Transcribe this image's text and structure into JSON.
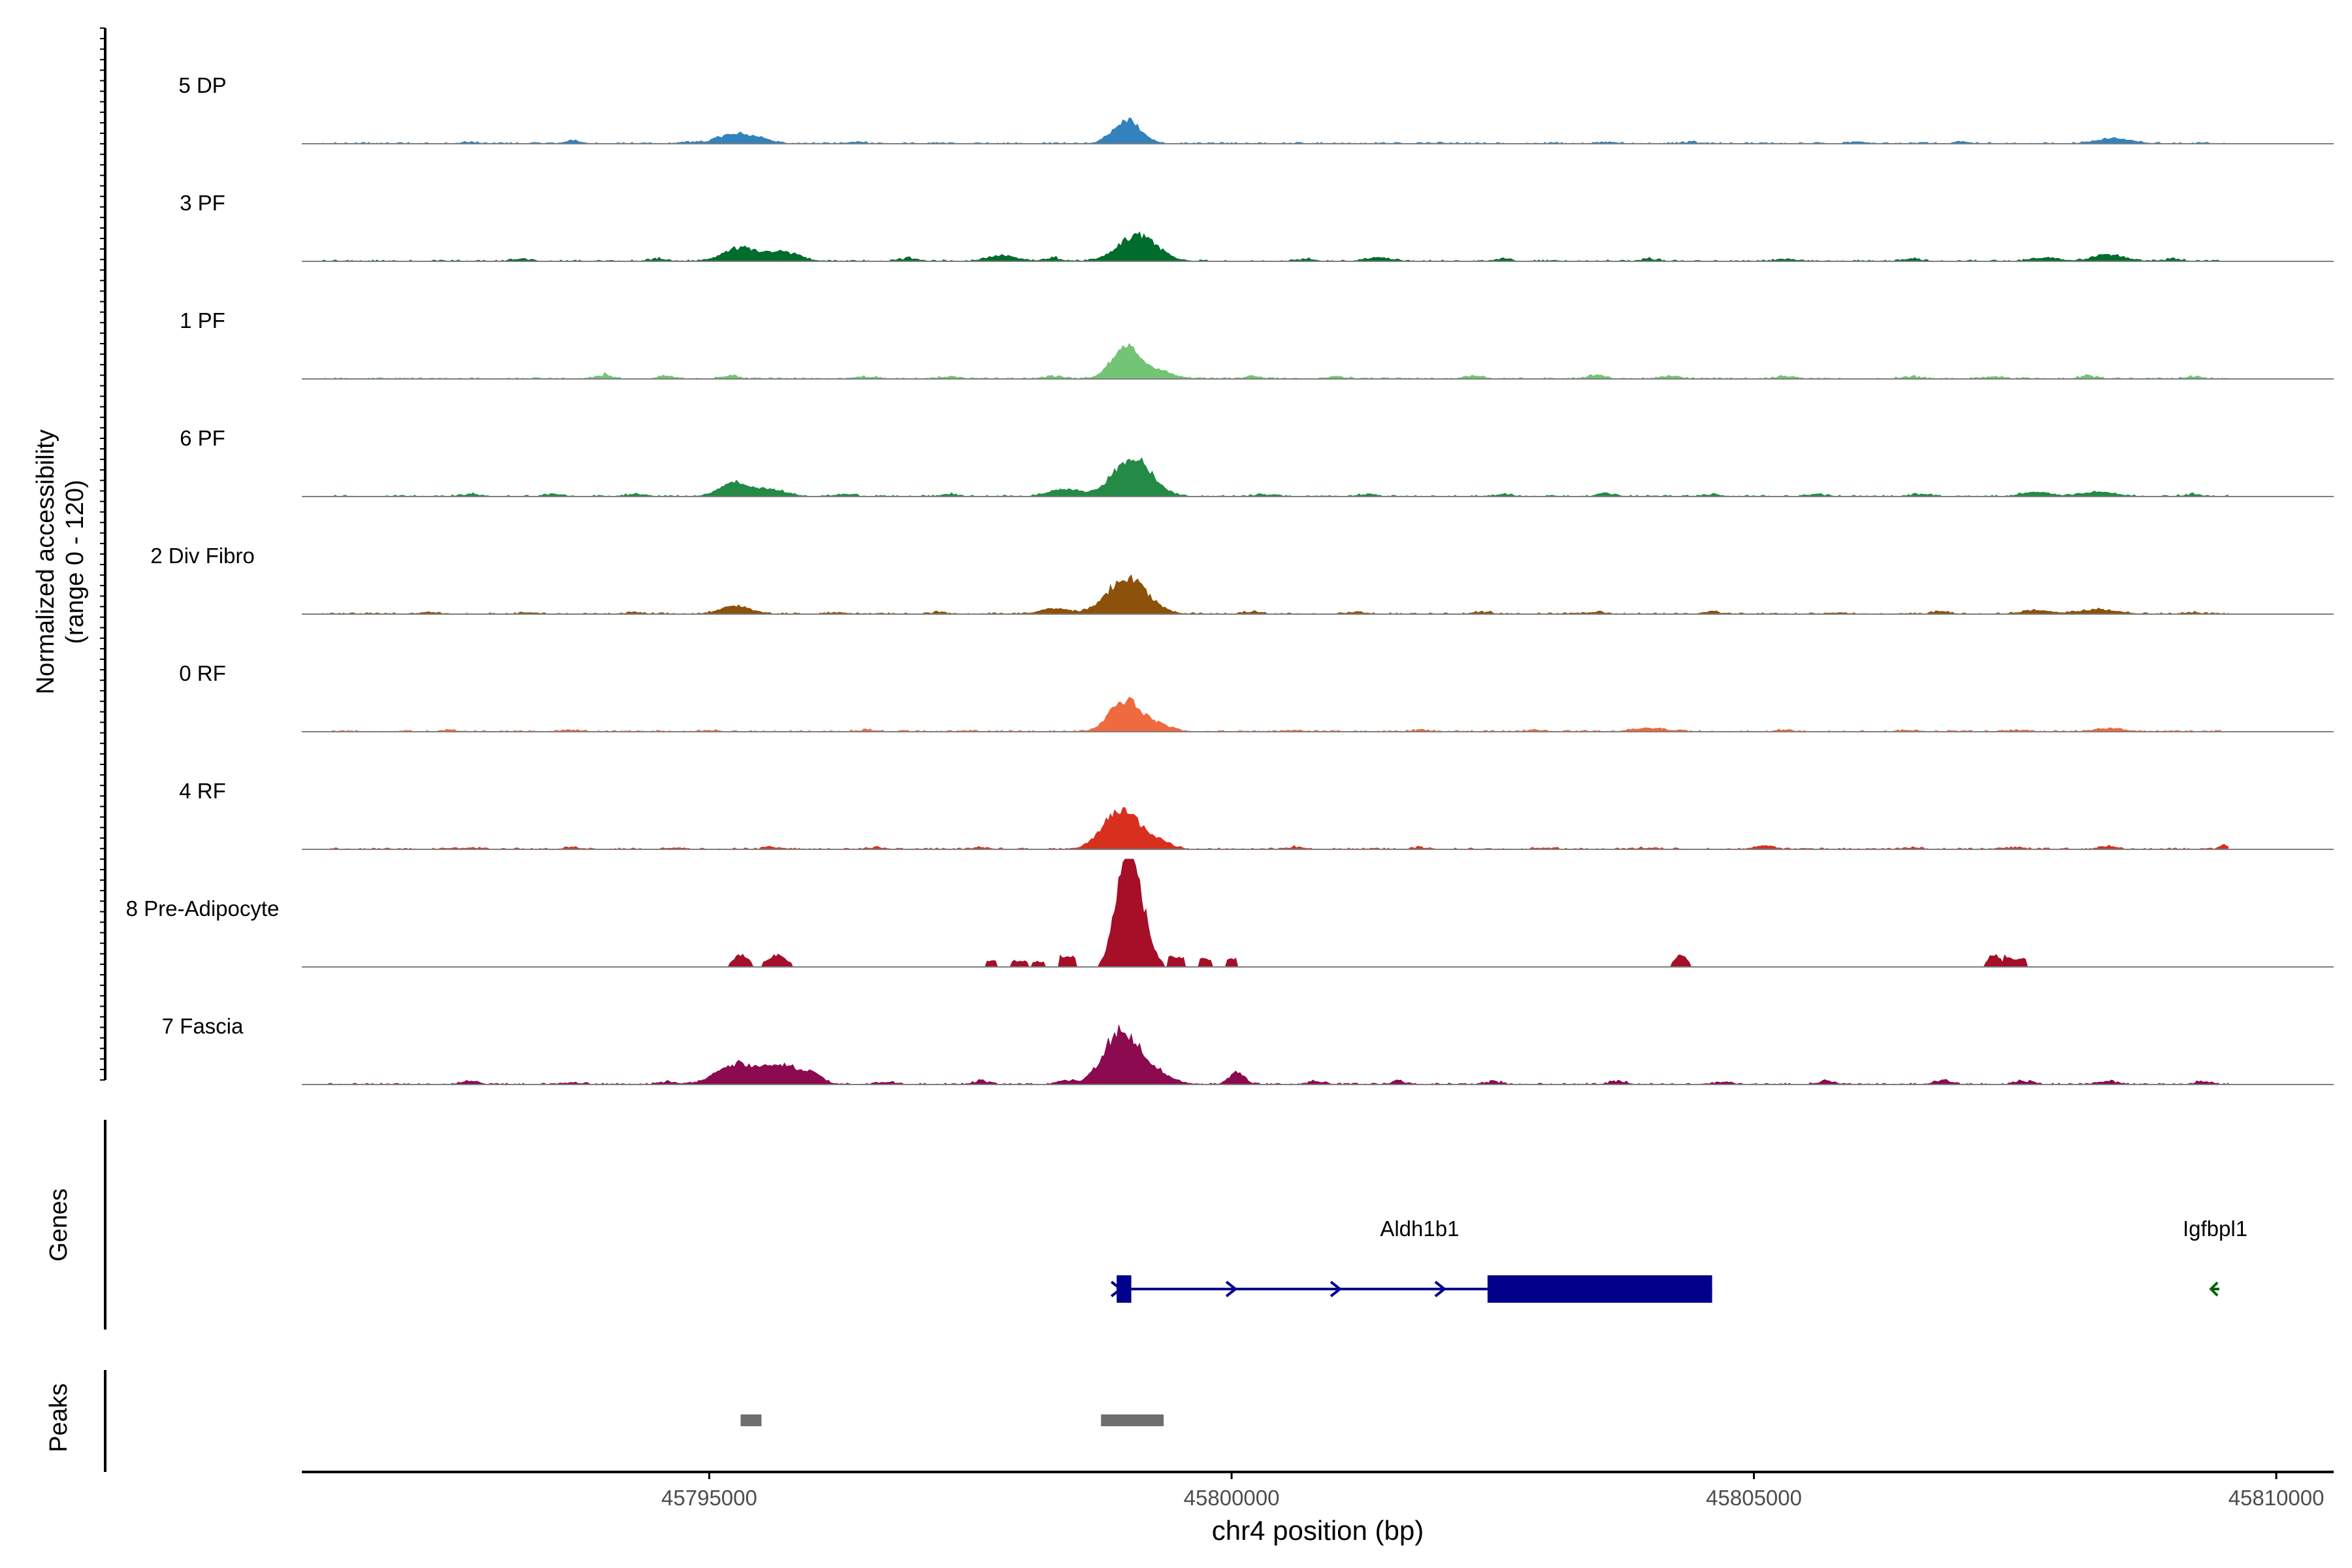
{
  "chart_data": {
    "type": "area",
    "subtype": "genome-coverage-track",
    "yaxis": {
      "label_line1": "Normalized accessibility",
      "label_line2": "(range 0 - 120)",
      "range": [
        0,
        120
      ]
    },
    "xaxis": {
      "label": "chr4 position (bp)",
      "range": [
        45791100,
        45810550
      ],
      "ticks": [
        45795000,
        45800000,
        45805000,
        45810000
      ],
      "tick_labels": [
        "45795000",
        "45800000",
        "45805000",
        "45810000"
      ]
    },
    "grid": false,
    "legend": "none",
    "tracks": [
      {
        "name": "5 DP",
        "color": "#3182bd",
        "sparse": false,
        "peaks": [
          [
            45795250,
            11,
            160
          ],
          [
            45799000,
            26,
            130
          ],
          [
            45808450,
            6,
            160
          ],
          [
            45795500,
            4,
            100
          ]
        ],
        "bumps": [
          [
            45792700,
            2
          ],
          [
            45793700,
            3
          ],
          [
            45794800,
            2
          ],
          [
            45796400,
            2
          ],
          [
            45797200,
            1
          ],
          [
            45802000,
            1
          ],
          [
            45803600,
            2
          ],
          [
            45804400,
            2
          ],
          [
            45806000,
            2
          ],
          [
            45807000,
            2
          ],
          [
            45809300,
            1
          ]
        ]
      },
      {
        "name": "3 PF",
        "color": "#006d2c",
        "sparse": false,
        "peaks": [
          [
            45795300,
            15,
            160
          ],
          [
            45795700,
            10,
            150
          ],
          [
            45799100,
            30,
            180
          ],
          [
            45797800,
            6,
            140
          ],
          [
            45801400,
            4,
            120
          ],
          [
            45808400,
            7,
            150
          ],
          [
            45807800,
            4,
            120
          ]
        ],
        "bumps": [
          [
            45793200,
            3
          ],
          [
            45794500,
            3
          ],
          [
            45796900,
            4
          ],
          [
            45798300,
            4
          ],
          [
            45800700,
            3
          ],
          [
            45802600,
            3
          ],
          [
            45804000,
            3
          ],
          [
            45805300,
            3
          ],
          [
            45806500,
            3
          ],
          [
            45809000,
            3
          ]
        ]
      },
      {
        "name": "1 PF",
        "color": "#74c476",
        "sparse": false,
        "peaks": [
          [
            45798980,
            34,
            130
          ],
          [
            45799250,
            9,
            160
          ]
        ],
        "bumps": [
          [
            45794000,
            5
          ],
          [
            45794600,
            4
          ],
          [
            45795200,
            4
          ],
          [
            45796500,
            3
          ],
          [
            45797300,
            3
          ],
          [
            45798300,
            4
          ],
          [
            45800200,
            3
          ],
          [
            45801000,
            3
          ],
          [
            45802300,
            4
          ],
          [
            45803500,
            5
          ],
          [
            45804200,
            4
          ],
          [
            45805300,
            3
          ],
          [
            45806500,
            3
          ],
          [
            45807300,
            3
          ],
          [
            45808200,
            4
          ],
          [
            45809200,
            3
          ]
        ]
      },
      {
        "name": "6 PF",
        "color": "#238b45",
        "sparse": false,
        "peaks": [
          [
            45795250,
            16,
            140
          ],
          [
            45795600,
            7,
            140
          ],
          [
            45799050,
            44,
            180
          ],
          [
            45798400,
            8,
            140
          ],
          [
            45808300,
            5,
            160
          ],
          [
            45807700,
            5,
            130
          ]
        ],
        "bumps": [
          [
            45792700,
            3
          ],
          [
            45793500,
            3
          ],
          [
            45794300,
            3
          ],
          [
            45796300,
            3
          ],
          [
            45797300,
            3
          ],
          [
            45800300,
            3
          ],
          [
            45801300,
            3
          ],
          [
            45802600,
            3
          ],
          [
            45803600,
            3
          ],
          [
            45804600,
            3
          ],
          [
            45805600,
            3
          ],
          [
            45806600,
            3
          ],
          [
            45809200,
            3
          ]
        ]
      },
      {
        "name": "2 Div Fibro",
        "color": "#8c510a",
        "sparse": false,
        "peaks": [
          [
            45795250,
            9,
            140
          ],
          [
            45799000,
            40,
            190
          ],
          [
            45798300,
            6,
            130
          ],
          [
            45808300,
            5,
            180
          ],
          [
            45807700,
            4,
            140
          ]
        ],
        "bumps": [
          [
            45792300,
            2
          ],
          [
            45793300,
            2
          ],
          [
            45794300,
            2
          ],
          [
            45796200,
            2
          ],
          [
            45797200,
            2
          ],
          [
            45800200,
            3
          ],
          [
            45801200,
            3
          ],
          [
            45802400,
            3
          ],
          [
            45803500,
            3
          ],
          [
            45804600,
            3
          ],
          [
            45805800,
            2
          ],
          [
            45806800,
            3
          ],
          [
            45809200,
            2
          ]
        ]
      },
      {
        "name": "0 RF",
        "color": "#ef6a3e",
        "sparse": false,
        "peaks": [
          [
            45798980,
            36,
            140
          ],
          [
            45799280,
            8,
            130
          ],
          [
            45804000,
            4,
            150
          ],
          [
            45808400,
            3,
            150
          ]
        ],
        "bumps": [
          [
            45792500,
            2
          ],
          [
            45793700,
            2
          ],
          [
            45795000,
            2
          ],
          [
            45796500,
            2
          ],
          [
            45797500,
            1
          ],
          [
            45800600,
            2
          ],
          [
            45801800,
            2
          ],
          [
            45802900,
            2
          ],
          [
            45805300,
            2
          ],
          [
            45806500,
            2
          ],
          [
            45807500,
            2
          ],
          [
            45809000,
            1
          ]
        ]
      },
      {
        "name": "4 RF",
        "color": "#d7301f",
        "sparse": false,
        "peaks": [
          [
            45798950,
            45,
            170
          ],
          [
            45799300,
            7,
            120
          ],
          [
            45805100,
            4,
            80
          ],
          [
            45809500,
            5,
            40
          ]
        ],
        "bumps": [
          [
            45792700,
            2
          ],
          [
            45793700,
            2
          ],
          [
            45794700,
            2
          ],
          [
            45795600,
            3
          ],
          [
            45796600,
            2
          ],
          [
            45797600,
            2
          ],
          [
            45800600,
            3
          ],
          [
            45801800,
            2
          ],
          [
            45803000,
            2
          ],
          [
            45804000,
            2
          ],
          [
            45806500,
            2
          ],
          [
            45807500,
            2
          ],
          [
            45808400,
            3
          ]
        ]
      },
      {
        "name": "8 Pre-Adipocyte",
        "color": "#a50f28",
        "sparse": true,
        "peaks": [
          [
            45798980,
            95,
            100
          ],
          [
            45799100,
            60,
            110
          ],
          [
            45795300,
            14,
            70
          ],
          [
            45795650,
            14,
            90
          ],
          [
            45804300,
            14,
            60
          ],
          [
            45807300,
            14,
            60
          ]
        ],
        "blocks": [
          [
            45797650,
            45797750,
            7
          ],
          [
            45797900,
            45798050,
            7
          ],
          [
            45798100,
            45798200,
            6
          ],
          [
            45798350,
            45798500,
            12
          ],
          [
            45799400,
            45799550,
            11
          ],
          [
            45799700,
            45799800,
            9
          ],
          [
            45799950,
            45800050,
            9
          ],
          [
            45807400,
            45807600,
            9
          ]
        ]
      },
      {
        "name": "7 Fascia",
        "color": "#8b0a50",
        "sparse": false,
        "peaks": [
          [
            45795250,
            22,
            180
          ],
          [
            45795700,
            21,
            190
          ],
          [
            45798950,
            60,
            170
          ],
          [
            45799300,
            10,
            140
          ],
          [
            45800050,
            14,
            70
          ],
          [
            45796000,
            8,
            80
          ]
        ],
        "bumps": [
          [
            45792700,
            4
          ],
          [
            45793700,
            3
          ],
          [
            45794600,
            4
          ],
          [
            45796700,
            4
          ],
          [
            45797600,
            4
          ],
          [
            45798400,
            5
          ],
          [
            45800800,
            4
          ],
          [
            45801600,
            4
          ],
          [
            45802500,
            4
          ],
          [
            45803700,
            4
          ],
          [
            45804700,
            4
          ],
          [
            45805700,
            4
          ],
          [
            45806800,
            5
          ],
          [
            45807600,
            5
          ],
          [
            45808400,
            5
          ],
          [
            45809300,
            4
          ]
        ]
      }
    ],
    "genes_track": {
      "label": "Genes",
      "genes": [
        {
          "name": "Aldh1b1",
          "strand": "+",
          "color": "#00008b",
          "start": 45798900,
          "end": 45804600,
          "exons": [
            [
              45798900,
              45799040
            ],
            [
              45802450,
              45804600
            ]
          ],
          "arrows": [
            45798900,
            45800000,
            45801000,
            45802000
          ]
        },
        {
          "name": "Igfbpl1",
          "strand": "-",
          "color": "#006400",
          "start": 45809300,
          "end": 45809530,
          "exons": [],
          "arrows": [
            45809400
          ]
        }
      ]
    },
    "peaks_track": {
      "label": "Peaks",
      "color": "#6e6e6e",
      "regions": [
        [
          45795300,
          45795500
        ],
        [
          45798750,
          45799350
        ]
      ]
    }
  }
}
